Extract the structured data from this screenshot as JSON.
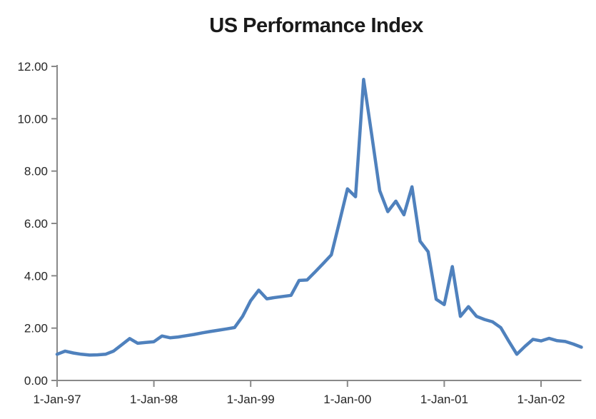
{
  "chart_data": {
    "type": "line",
    "title": "US Performance Index",
    "frequency": "monthly",
    "x_start_label": "1-Jan-97",
    "x_tick_labels": [
      "1-Jan-97",
      "1-Jan-98",
      "1-Jan-99",
      "1-Jan-00",
      "1-Jan-01",
      "1-Jan-02"
    ],
    "x_tick_month_positions": [
      0,
      12,
      24,
      36,
      48,
      60
    ],
    "y_ticks": [
      0,
      2,
      4,
      6,
      8,
      10,
      12
    ],
    "y_tick_labels": [
      "0.00",
      "2.00",
      "4.00",
      "6.00",
      "8.00",
      "10.00",
      "12.00"
    ],
    "ylim": [
      0,
      12
    ],
    "grid": false,
    "legend": "none",
    "series": [
      {
        "values": [
          1.0,
          1.12,
          1.05,
          1.0,
          0.97,
          0.98,
          1.0,
          1.12,
          1.36,
          1.6,
          1.42,
          1.45,
          1.48,
          1.7,
          1.63,
          1.66,
          1.71,
          1.76,
          1.82,
          1.87,
          1.92,
          1.97,
          2.02,
          2.45,
          3.05,
          3.45,
          3.12,
          3.17,
          3.21,
          3.25,
          3.82,
          3.84,
          4.15,
          4.47,
          4.8,
          6.05,
          7.32,
          7.02,
          11.5,
          9.4,
          7.25,
          6.45,
          6.85,
          6.33,
          7.4,
          5.32,
          4.92,
          3.1,
          2.9,
          4.35,
          2.45,
          2.82,
          2.45,
          2.33,
          2.24,
          2.02,
          1.5,
          1.0,
          1.3,
          1.57,
          1.51,
          1.61,
          1.52,
          1.49,
          1.39,
          1.27
        ]
      }
    ],
    "colors": {
      "line": "#4F81BD",
      "axis": "#898989",
      "tick_text": "#262626",
      "title_text": "#1A1A1A",
      "background": "#FFFFFF"
    }
  }
}
